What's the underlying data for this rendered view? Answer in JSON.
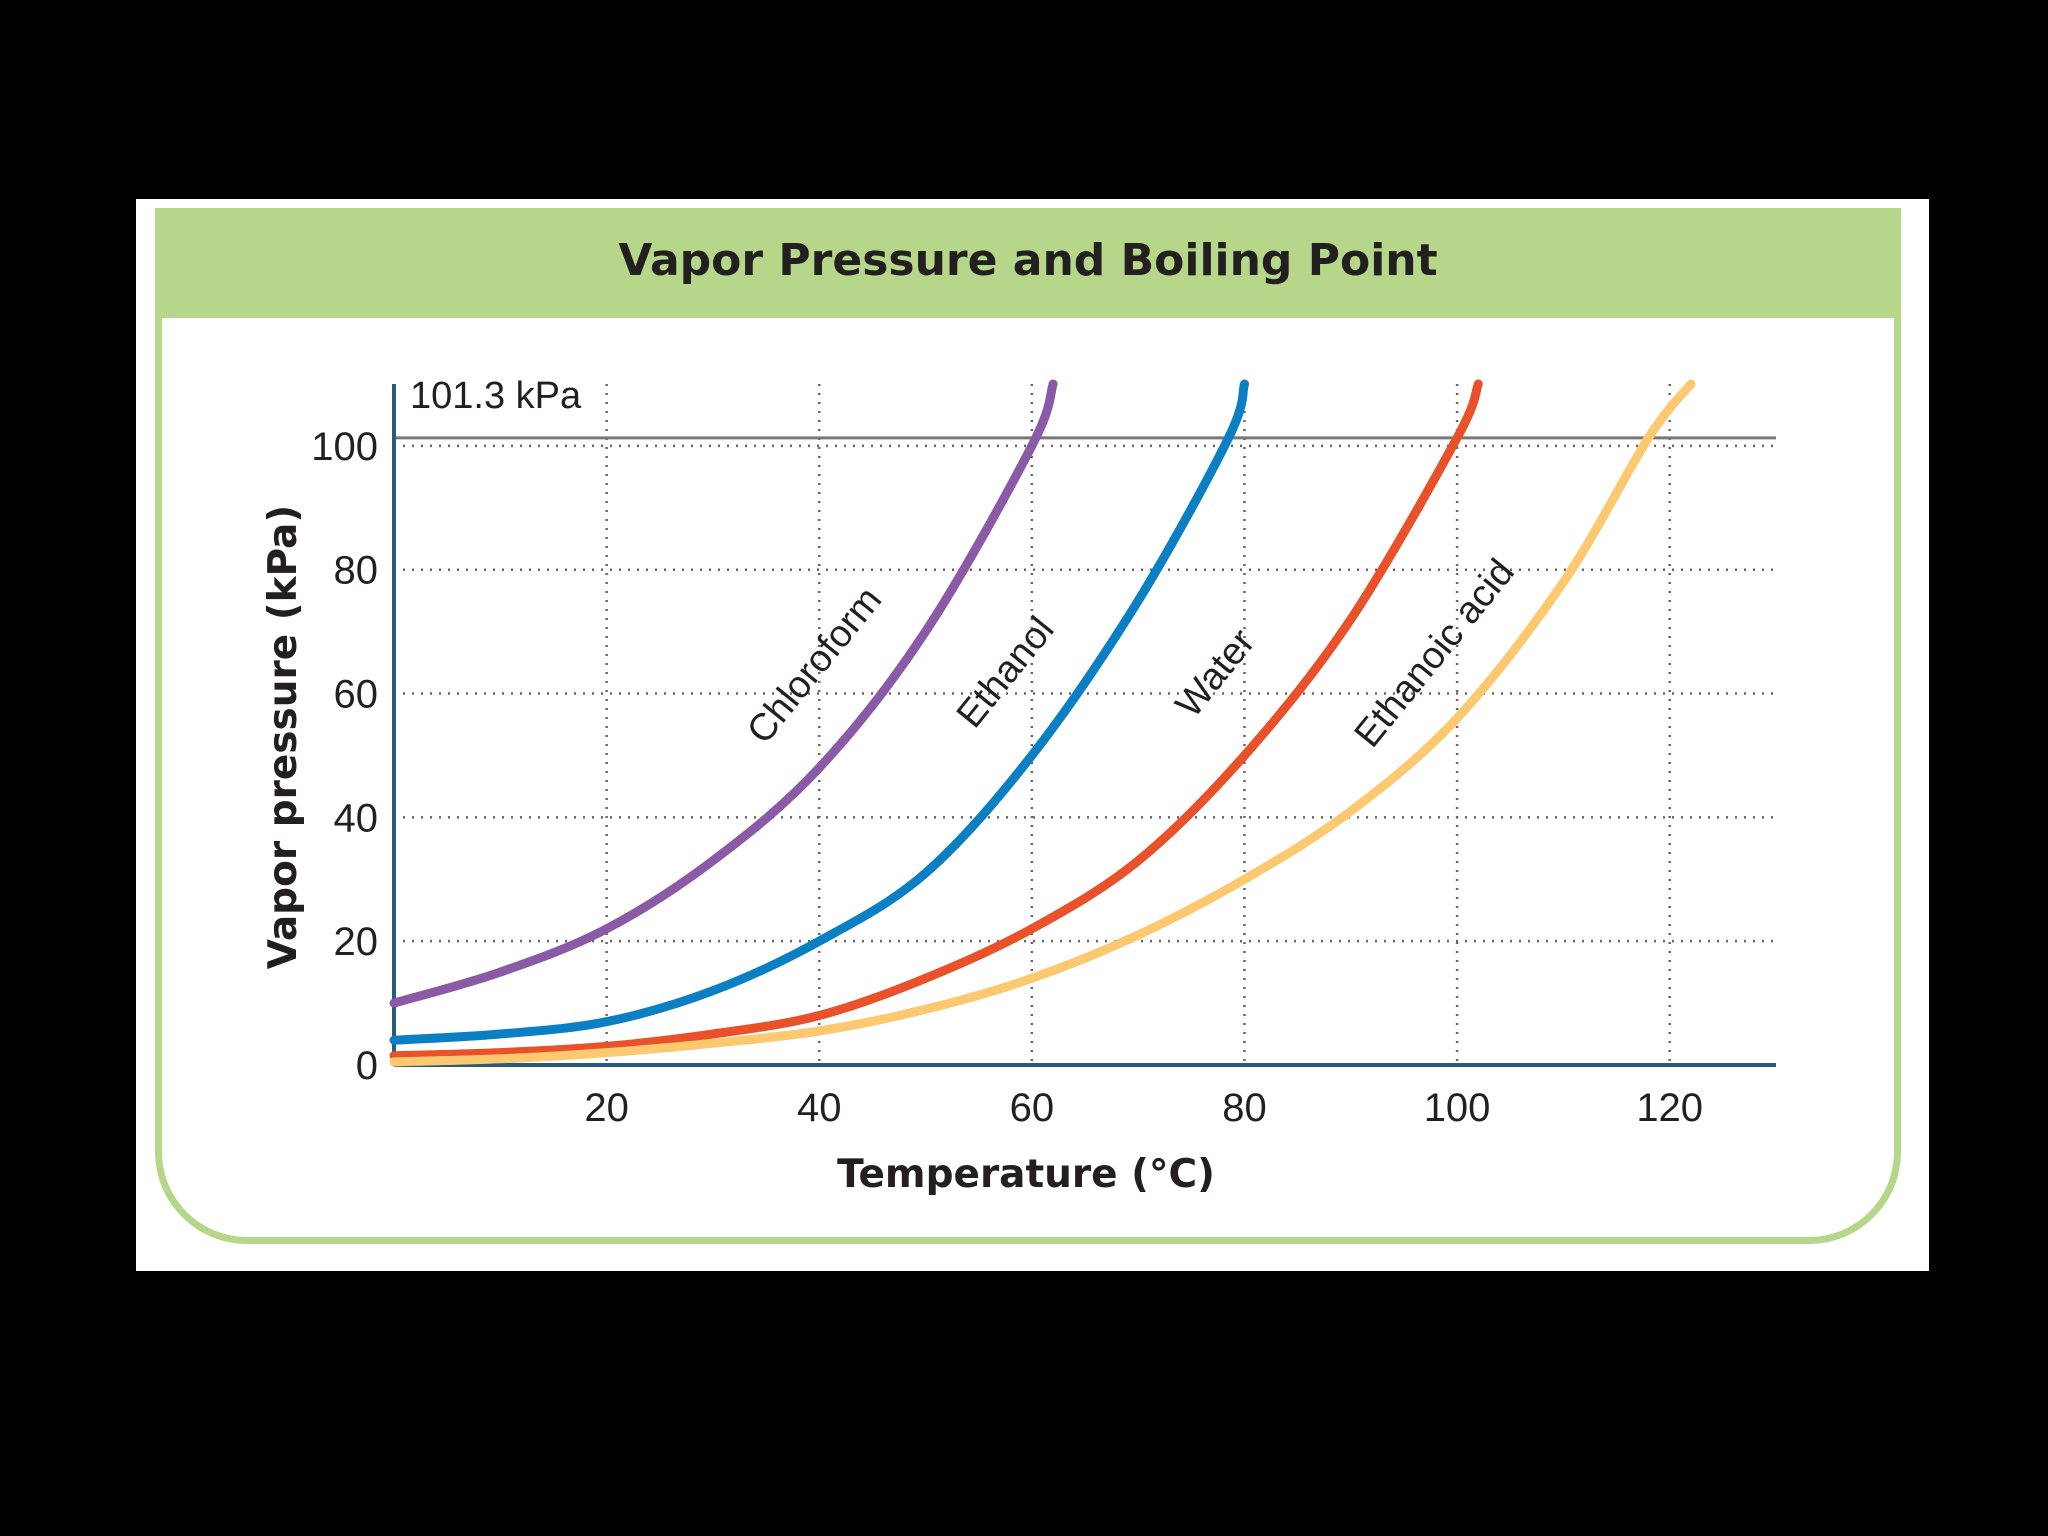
{
  "chart_data": {
    "type": "line",
    "title": "Vapor Pressure and Boiling Point",
    "xlabel": "Temperature (°C)",
    "ylabel": "Vapor pressure (kPa)",
    "xlim": [
      0,
      130
    ],
    "ylim": [
      0,
      110
    ],
    "xticks": [
      20,
      40,
      60,
      80,
      100,
      120
    ],
    "yticks": [
      0,
      20,
      40,
      60,
      80,
      100
    ],
    "grid": true,
    "reference_line": {
      "value": 101.3,
      "label": "101.3 kPa"
    },
    "series": [
      {
        "name": "Chloroform",
        "color": "#8a5aa6",
        "x": [
          0,
          10,
          20,
          30,
          40,
          50,
          60,
          62
        ],
        "y": [
          10,
          15,
          22,
          33,
          48,
          70,
          100,
          110
        ]
      },
      {
        "name": "Ethanol",
        "color": "#0a7fc4",
        "x": [
          0,
          10,
          20,
          30,
          40,
          50,
          60,
          70,
          78.5,
          80
        ],
        "y": [
          4,
          5,
          7,
          12,
          20,
          31,
          50,
          75,
          101.3,
          110
        ]
      },
      {
        "name": "Water",
        "color": "#e8512a",
        "x": [
          0,
          10,
          20,
          30,
          40,
          50,
          60,
          70,
          80,
          90,
          100,
          102
        ],
        "y": [
          1.5,
          2,
          3,
          5,
          8,
          14,
          22,
          33,
          50,
          72,
          101.3,
          110
        ]
      },
      {
        "name": "Ethanoic acid",
        "color": "#fcc870",
        "x": [
          0,
          10,
          20,
          30,
          40,
          50,
          60,
          70,
          80,
          90,
          100,
          110,
          118,
          122
        ],
        "y": [
          0.5,
          1,
          2,
          3.5,
          5.5,
          9,
          14,
          21,
          30,
          41,
          56,
          78,
          101.3,
          110
        ]
      }
    ]
  }
}
